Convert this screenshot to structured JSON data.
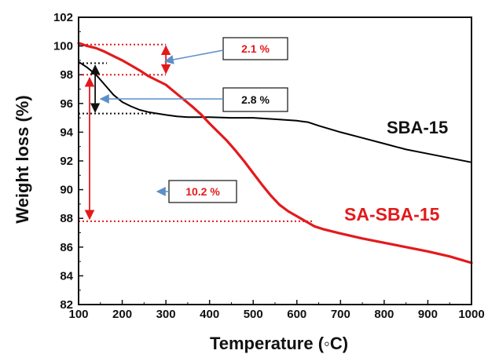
{
  "chart_data": {
    "type": "line",
    "title": "",
    "xlabel": "Temperature (◦C)",
    "ylabel": "Weight loss (%)",
    "xlim": [
      100,
      1000
    ],
    "ylim": [
      82,
      102
    ],
    "xticks": [
      100,
      200,
      300,
      400,
      500,
      600,
      700,
      800,
      900,
      1000
    ],
    "yticks": [
      82,
      84,
      86,
      88,
      90,
      92,
      94,
      96,
      98,
      100,
      102
    ],
    "grid": false,
    "series": [
      {
        "name": "SBA-15",
        "color": "#000000",
        "x": [
          100,
          120,
          140,
          160,
          180,
          200,
          220,
          240,
          260,
          280,
          300,
          325,
          350,
          400,
          450,
          500,
          550,
          600,
          625,
          650,
          700,
          750,
          800,
          850,
          900,
          950,
          1000
        ],
        "y": [
          98.9,
          98.5,
          98.0,
          97.3,
          96.6,
          96.1,
          95.8,
          95.55,
          95.4,
          95.3,
          95.2,
          95.1,
          95.05,
          95.05,
          95.0,
          95.0,
          94.9,
          94.8,
          94.7,
          94.45,
          94.0,
          93.6,
          93.2,
          92.8,
          92.5,
          92.2,
          91.9
        ]
      },
      {
        "name": "SA-SBA-15",
        "color": "#e31a1c",
        "x": [
          100,
          120,
          140,
          160,
          180,
          200,
          220,
          240,
          260,
          280,
          300,
          320,
          340,
          360,
          380,
          400,
          420,
          440,
          460,
          480,
          500,
          520,
          540,
          560,
          580,
          600,
          620,
          640,
          660,
          680,
          700,
          750,
          800,
          850,
          900,
          950,
          1000
        ],
        "y": [
          100.2,
          100.0,
          99.85,
          99.6,
          99.3,
          99.0,
          98.65,
          98.3,
          97.9,
          97.6,
          97.3,
          96.8,
          96.3,
          95.8,
          95.25,
          94.6,
          94.0,
          93.4,
          92.7,
          91.95,
          91.15,
          90.35,
          89.6,
          88.95,
          88.5,
          88.15,
          87.8,
          87.45,
          87.25,
          87.1,
          86.95,
          86.6,
          86.3,
          86.0,
          85.7,
          85.35,
          84.9
        ]
      }
    ],
    "series_labels": [
      {
        "text": "SBA-15",
        "color": "#111111"
      },
      {
        "text": "SA-SBA-15",
        "color": "#e31a1c"
      }
    ],
    "annotations": [
      {
        "text": "2.1 %",
        "color": "#e31a1c",
        "x_from": 100,
        "x_to": 300,
        "y_top": 100.1,
        "y_bottom": 98.0,
        "bracket_x": 300,
        "bracket_color": "#e31a1c"
      },
      {
        "text": "2.8 %",
        "color": "#111111",
        "x_from": 100,
        "x_to": 280,
        "y_top": 98.8,
        "y_bottom": 95.3,
        "bracket_x": 138,
        "bracket_color": "#111111"
      },
      {
        "text": "10.2 %",
        "color": "#e31a1c",
        "x_from": 100,
        "x_to": 640,
        "y_top": 98.0,
        "y_bottom": 87.8,
        "bracket_x": 280,
        "bracket_color": "#e31a1c"
      }
    ]
  }
}
